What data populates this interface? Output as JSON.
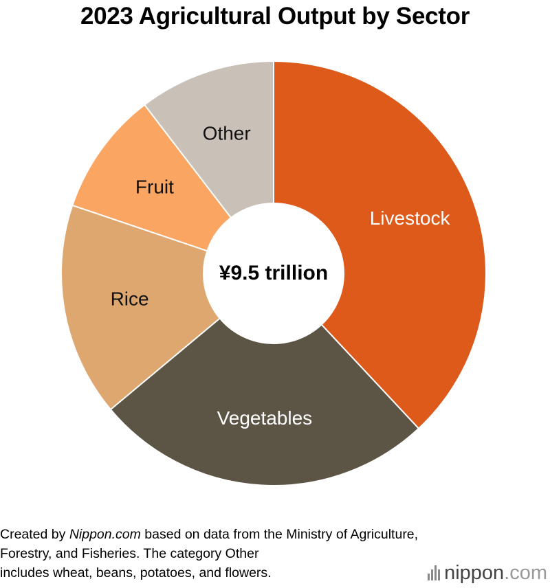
{
  "chart_data": {
    "type": "pie",
    "title": "2023 Agricultural Output by Sector",
    "center_label": "¥9.5 trillion",
    "slices": [
      {
        "label": "Livestock",
        "value": 38.8,
        "color": "#dd5a1b",
        "text_color": "#ffffff"
      },
      {
        "label": "Vegetables",
        "value": 26.4,
        "color": "#5c5444",
        "text_color": "#ffffff"
      },
      {
        "label": "Rice",
        "value": 16.6,
        "color": "#dea76f",
        "text_color": "#111111"
      },
      {
        "label": "Fruit",
        "value": 9.6,
        "color": "#fba563",
        "text_color": "#111111"
      },
      {
        "label": "Other",
        "value": 10.6,
        "color": "#c9c0b7",
        "text_color": "#111111"
      }
    ]
  },
  "footer": {
    "prefix": "Created by ",
    "source_name": "Nippon.com",
    "line1_rest": " based on data from the Ministry of Agriculture,",
    "line2": "Forestry, and Fisheries. The category Other",
    "line3": "includes wheat, beans, potatoes, and flowers."
  },
  "logo": {
    "text_main": "nippon",
    "text_domain": ".com",
    "main_color": "#444444",
    "domain_color": "#999999"
  }
}
